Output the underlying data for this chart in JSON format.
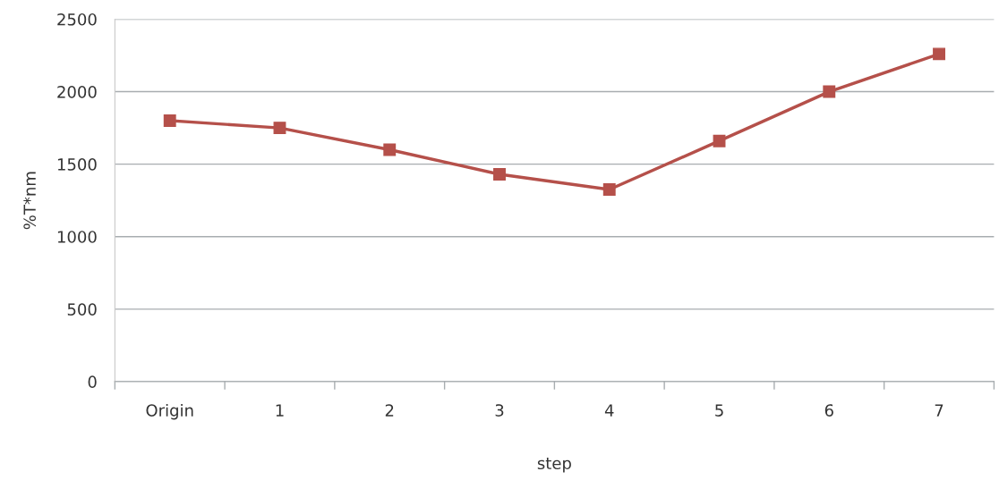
{
  "chart_data": {
    "type": "line",
    "xlabel": "step",
    "ylabel": "%T*nm",
    "categories": [
      "Origin",
      "1",
      "2",
      "3",
      "4",
      "5",
      "6",
      "7"
    ],
    "series": [
      {
        "color": "#b5504a",
        "values": [
          1800,
          1750,
          1600,
          1430,
          1325,
          1660,
          2000,
          2260
        ]
      }
    ],
    "ylim": [
      0,
      2500
    ],
    "yticks": [
      0,
      500,
      1000,
      1500,
      2000,
      2500
    ],
    "grid": "y",
    "marker": "square",
    "line_style": "solid"
  }
}
